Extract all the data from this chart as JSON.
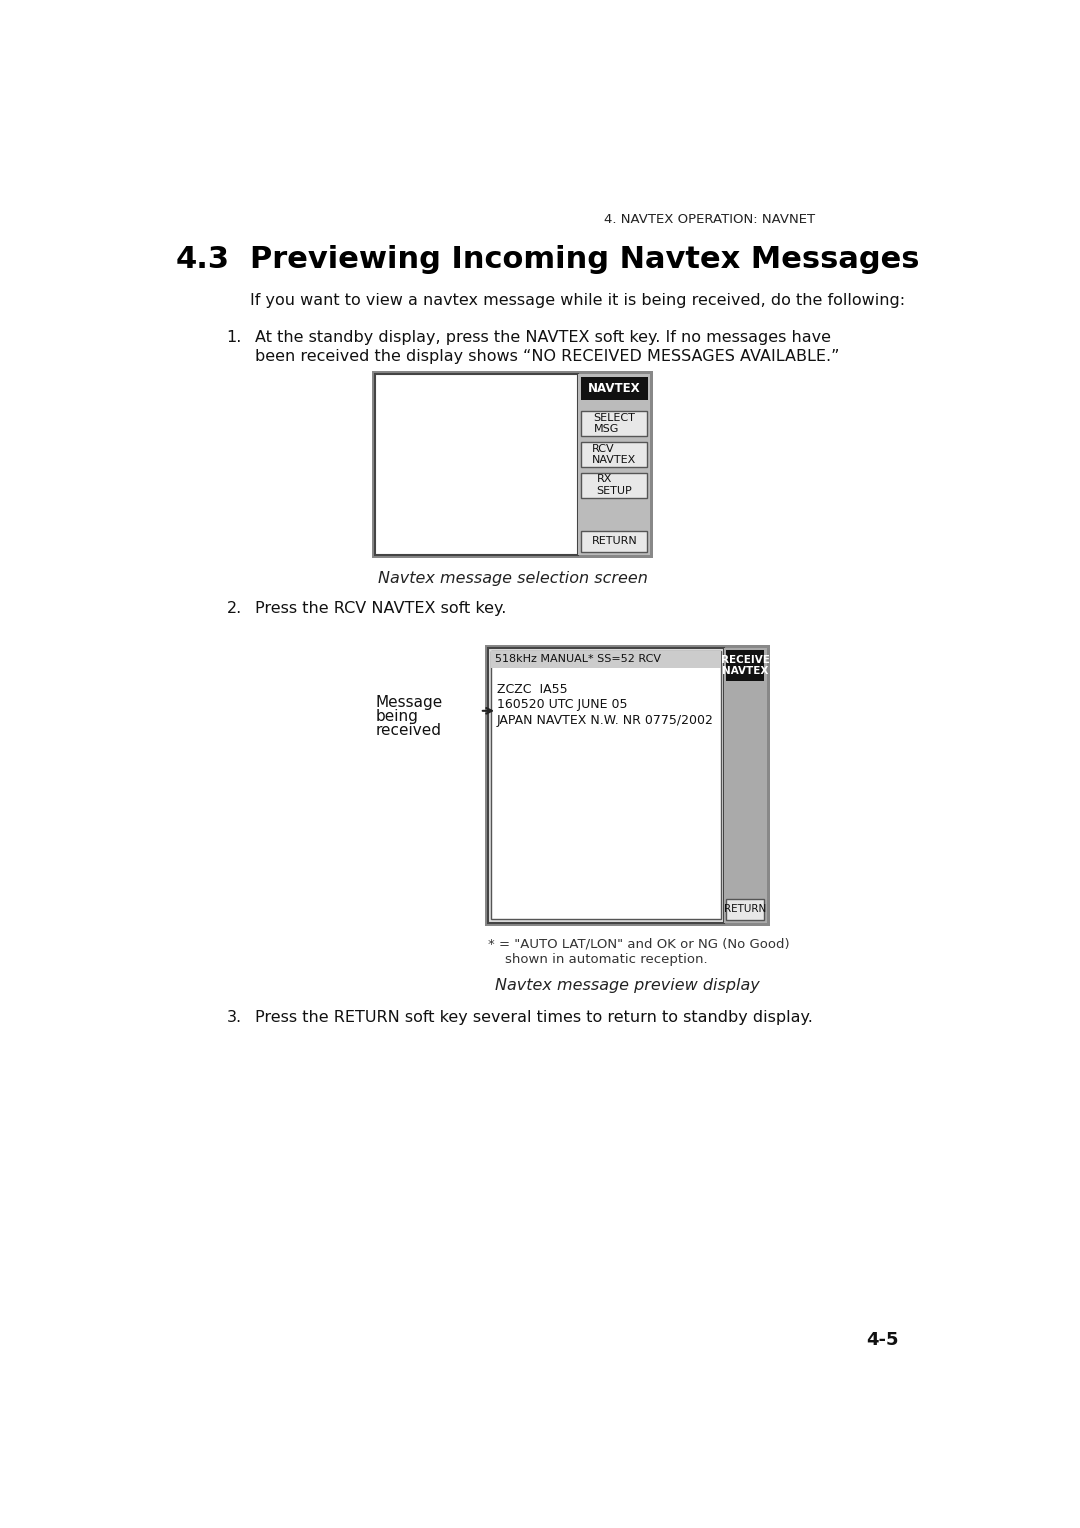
{
  "page_header": "4. NAVTEX OPERATION: NAVNET",
  "section_number": "4.3",
  "section_title": "Previewing Incoming Navtex Messages",
  "intro_text": "If you want to view a navtex message while it is being received, do the following:",
  "step1_text_line1": "At the standby display, press the NAVTEX soft key. If no messages have",
  "step1_text_line2": "been received the display shows “NO RECEIVED MESSAGES AVAILABLE.”",
  "screen1_caption": "Navtex message selection screen",
  "step2_text": "Press the RCV NAVTEX soft key.",
  "screen2_caption": "Navtex message preview display",
  "screen2_header": "518kHz MANUAL* SS=52 RCV",
  "screen2_content_lines": [
    "ZCZC  IA55",
    "160520 UTC JUNE 05",
    "JAPAN NAVTEX N.W. NR 0775/2002"
  ],
  "msg_label_line1": "Message",
  "msg_label_line2": "being",
  "msg_label_line3": "received",
  "footnote_line1": "* = \"AUTO LAT/LON\" and OK or NG (No Good)",
  "footnote_line2": "    shown in automatic reception.",
  "step3_text": "Press the RETURN soft key several times to return to standby display.",
  "page_number": "4-5",
  "bg_color": "#ffffff"
}
